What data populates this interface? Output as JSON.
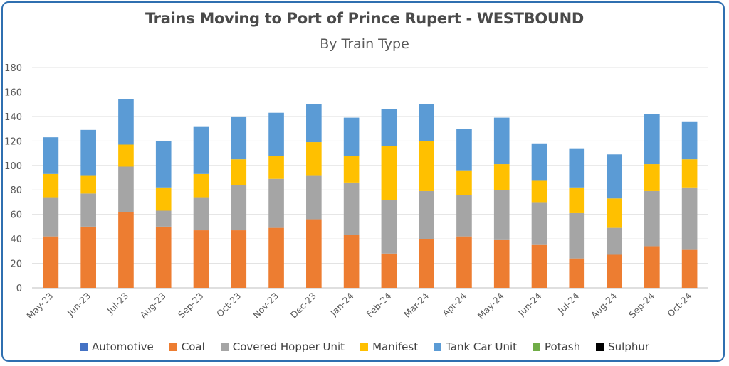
{
  "chart_data": {
    "type": "bar",
    "stacked": true,
    "title": "Trains Moving to Port of Prince Rupert - WESTBOUND",
    "subtitle": "By Train Type",
    "categories": [
      "May-23",
      "Jun-23",
      "Jul-23",
      "Aug-23",
      "Sep-23",
      "Oct-23",
      "Nov-23",
      "Dec-23",
      "Jan-24",
      "Feb-24",
      "Mar-24",
      "Apr-24",
      "May-24",
      "Jun-24",
      "Jul-24",
      "Aug-24",
      "Sep-24",
      "Oct-24"
    ],
    "ylim": [
      0,
      180
    ],
    "yticks": [
      0,
      20,
      40,
      60,
      80,
      100,
      120,
      140,
      160,
      180
    ],
    "grid": true,
    "legend_position": "bottom",
    "series": [
      {
        "name": "Automotive",
        "color": "#4472c4",
        "values": [
          0,
          0,
          0,
          0,
          0,
          0,
          0,
          0,
          0,
          0,
          0,
          0,
          0,
          0,
          0,
          0,
          0,
          0
        ]
      },
      {
        "name": "Coal",
        "color": "#ed7d31",
        "values": [
          42,
          50,
          62,
          50,
          47,
          47,
          49,
          56,
          43,
          28,
          40,
          42,
          39,
          35,
          24,
          27,
          34,
          31
        ]
      },
      {
        "name": "Covered Hopper Unit",
        "color": "#a5a5a5",
        "values": [
          32,
          27,
          37,
          13,
          27,
          37,
          40,
          36,
          43,
          44,
          39,
          34,
          41,
          35,
          37,
          22,
          45,
          51
        ]
      },
      {
        "name": "Manifest",
        "color": "#ffc000",
        "values": [
          19,
          15,
          18,
          19,
          19,
          21,
          19,
          27,
          22,
          44,
          41,
          20,
          21,
          18,
          21,
          24,
          22,
          23
        ]
      },
      {
        "name": "Tank Car Unit",
        "color": "#5b9bd5",
        "values": [
          30,
          37,
          37,
          38,
          39,
          35,
          35,
          31,
          31,
          30,
          30,
          34,
          38,
          30,
          32,
          36,
          41,
          31
        ]
      },
      {
        "name": "Potash",
        "color": "#70ad47",
        "values": [
          0,
          0,
          0,
          0,
          0,
          0,
          0,
          0,
          0,
          0,
          0,
          0,
          0,
          0,
          0,
          0,
          0,
          0
        ]
      },
      {
        "name": "Sulphur",
        "color": "#000000",
        "values": [
          0,
          0,
          0,
          0,
          0,
          0,
          0,
          0,
          0,
          0,
          0,
          0,
          0,
          0,
          0,
          0,
          0,
          0
        ]
      }
    ]
  }
}
